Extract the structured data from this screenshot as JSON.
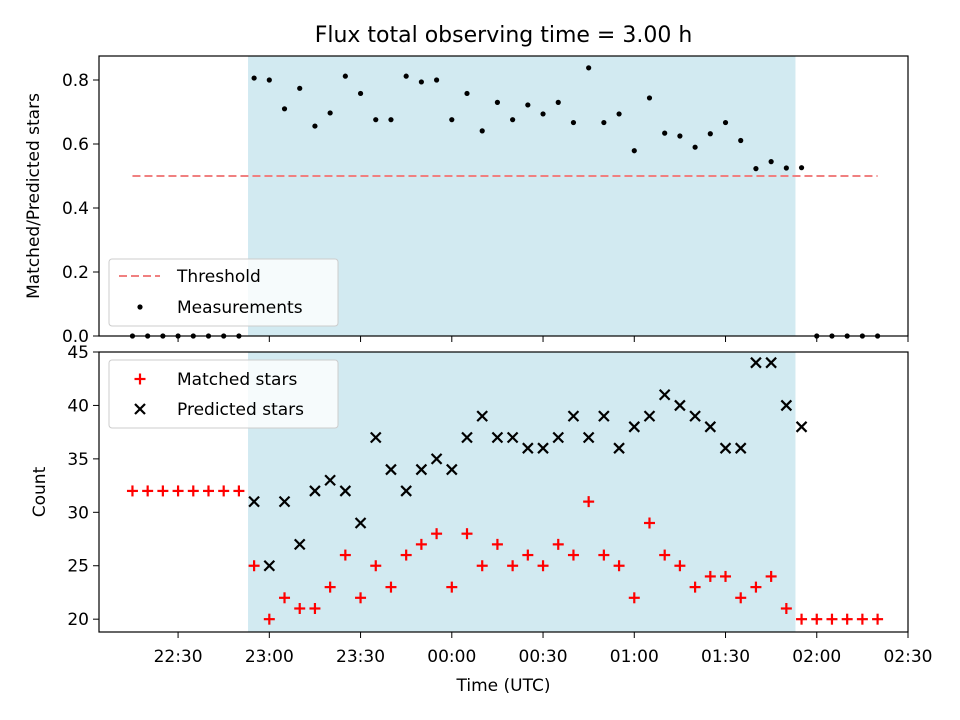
{
  "chart_data": [
    {
      "type": "scatter",
      "title": "Flux total observing time = 3.00 h",
      "xlabel": "",
      "ylabel": "Matched/Predicted stars",
      "ylim": [
        0,
        0.875
      ],
      "yticks": [
        "0.0",
        "0.2",
        "0.4",
        "0.6",
        "0.8"
      ],
      "ytick_values": [
        0,
        0.2,
        0.4,
        0.6,
        0.8
      ],
      "legend_position": "lower-left",
      "shaded_region": {
        "start": "22:53",
        "end": "01:53",
        "color": "#add8e6"
      },
      "threshold": {
        "name": "Threshold",
        "value": 0.5,
        "start": "22:15",
        "end": "02:20",
        "color": "#f08080"
      },
      "series": [
        {
          "name": "Measurements",
          "color": "#000000",
          "x": [
            "22:15",
            "22:20",
            "22:25",
            "22:30",
            "22:35",
            "22:40",
            "22:45",
            "22:50",
            "22:55",
            "23:00",
            "23:05",
            "23:10",
            "23:15",
            "23:20",
            "23:25",
            "23:30",
            "23:35",
            "23:40",
            "23:45",
            "23:50",
            "23:55",
            "00:00",
            "00:05",
            "00:10",
            "00:15",
            "00:20",
            "00:25",
            "00:30",
            "00:35",
            "00:40",
            "00:45",
            "00:50",
            "00:55",
            "01:00",
            "01:05",
            "01:10",
            "01:15",
            "01:20",
            "01:25",
            "01:30",
            "01:35",
            "01:40",
            "01:45",
            "01:50",
            "01:55",
            "02:00",
            "02:05",
            "02:10",
            "02:15",
            "02:20"
          ],
          "y": [
            0,
            0,
            0,
            0,
            0,
            0,
            0,
            0,
            0.806,
            0.8,
            0.71,
            0.774,
            0.656,
            0.697,
            0.812,
            0.758,
            0.676,
            0.676,
            0.812,
            0.794,
            0.8,
            0.676,
            0.758,
            0.641,
            0.73,
            0.676,
            0.722,
            0.694,
            0.73,
            0.667,
            0.838,
            0.667,
            0.694,
            0.579,
            0.744,
            0.634,
            0.625,
            0.59,
            0.632,
            0.667,
            0.611,
            0.523,
            0.545,
            0.525,
            0.526,
            0,
            0,
            0,
            0,
            0
          ]
        }
      ]
    },
    {
      "type": "scatter",
      "title": "",
      "xlabel": "Time (UTC)",
      "ylabel": "Count",
      "xlim": [
        "22:04",
        "02:30"
      ],
      "xticks": [
        "22:30",
        "23:00",
        "23:30",
        "00:00",
        "00:30",
        "01:00",
        "01:30",
        "02:00",
        "02:30"
      ],
      "ylim": [
        18.8,
        45
      ],
      "yticks": [
        "20",
        "25",
        "30",
        "35",
        "40",
        "45"
      ],
      "ytick_values": [
        20,
        25,
        30,
        35,
        40,
        45
      ],
      "legend_position": "upper-left",
      "shaded_region": {
        "start": "22:53",
        "end": "01:53",
        "color": "#add8e6"
      },
      "series": [
        {
          "name": "Matched stars",
          "marker": "plus",
          "color": "#ff0000",
          "x": [
            "22:15",
            "22:20",
            "22:25",
            "22:30",
            "22:35",
            "22:40",
            "22:45",
            "22:50",
            "22:55",
            "23:00",
            "23:05",
            "23:10",
            "23:15",
            "23:20",
            "23:25",
            "23:30",
            "23:35",
            "23:40",
            "23:45",
            "23:50",
            "23:55",
            "00:00",
            "00:05",
            "00:10",
            "00:15",
            "00:20",
            "00:25",
            "00:30",
            "00:35",
            "00:40",
            "00:45",
            "00:50",
            "00:55",
            "01:00",
            "01:05",
            "01:10",
            "01:15",
            "01:20",
            "01:25",
            "01:30",
            "01:35",
            "01:40",
            "01:45",
            "01:50",
            "01:55",
            "02:00",
            "02:05",
            "02:10",
            "02:15",
            "02:20"
          ],
          "y": [
            32,
            32,
            32,
            32,
            32,
            32,
            32,
            32,
            25,
            20,
            22,
            21,
            21,
            23,
            26,
            22,
            25,
            23,
            26,
            27,
            28,
            23,
            28,
            25,
            27,
            25,
            26,
            25,
            27,
            26,
            31,
            26,
            25,
            22,
            29,
            26,
            25,
            23,
            24,
            24,
            22,
            23,
            24,
            21,
            20,
            20,
            20,
            20,
            20,
            20
          ]
        },
        {
          "name": "Predicted stars",
          "marker": "x",
          "color": "#000000",
          "x": [
            "22:55",
            "23:00",
            "23:05",
            "23:10",
            "23:15",
            "23:20",
            "23:25",
            "23:30",
            "23:35",
            "23:40",
            "23:45",
            "23:50",
            "23:55",
            "00:00",
            "00:05",
            "00:10",
            "00:15",
            "00:20",
            "00:25",
            "00:30",
            "00:35",
            "00:40",
            "00:45",
            "00:50",
            "00:55",
            "01:00",
            "01:05",
            "01:10",
            "01:15",
            "01:20",
            "01:25",
            "01:30",
            "01:35",
            "01:40",
            "01:45",
            "01:50",
            "01:55"
          ],
          "y": [
            31,
            25,
            31,
            27,
            32,
            33,
            32,
            29,
            37,
            34,
            32,
            34,
            35,
            34,
            37,
            39,
            37,
            37,
            36,
            36,
            37,
            39,
            37,
            39,
            36,
            38,
            39,
            41,
            40,
            39,
            38,
            36,
            36,
            44,
            44,
            40,
            38
          ]
        }
      ]
    }
  ]
}
